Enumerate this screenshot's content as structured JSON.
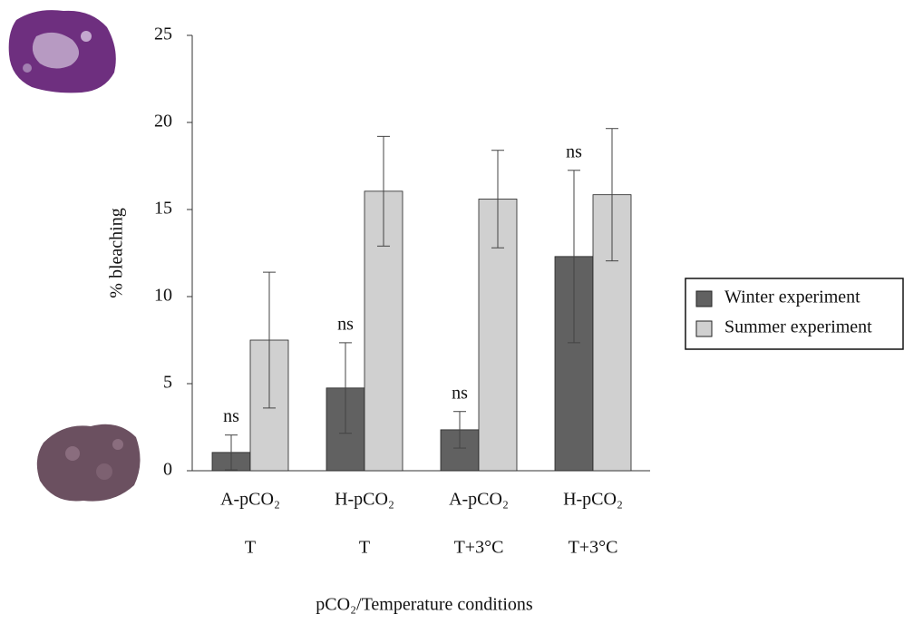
{
  "chart_data": {
    "type": "bar",
    "y_label": "% bleaching",
    "x_label": "pCO₂/Temperature conditions",
    "categories": [
      [
        "A-pCO₂",
        "T"
      ],
      [
        "H-pCO₂",
        "T"
      ],
      [
        "A-pCO₂",
        "T+3°C"
      ],
      [
        "H-pCO₂",
        "T+3°C"
      ]
    ],
    "series": [
      {
        "name": "Winter experiment",
        "color": "#616161",
        "values": [
          1.05,
          4.75,
          2.35,
          12.3
        ],
        "errors": [
          1.0,
          2.6,
          1.05,
          4.95
        ],
        "annotations": [
          "ns",
          "ns",
          "ns",
          "ns"
        ]
      },
      {
        "name": "Summer experiment",
        "color": "#d0d0d0",
        "values": [
          7.5,
          16.05,
          15.6,
          15.85
        ],
        "errors": [
          3.9,
          3.15,
          2.8,
          3.8
        ]
      }
    ],
    "ylim": [
      0,
      25
    ],
    "yticks": [
      0,
      5,
      10,
      15,
      20,
      25
    ],
    "grid": false,
    "legend": "right"
  }
}
